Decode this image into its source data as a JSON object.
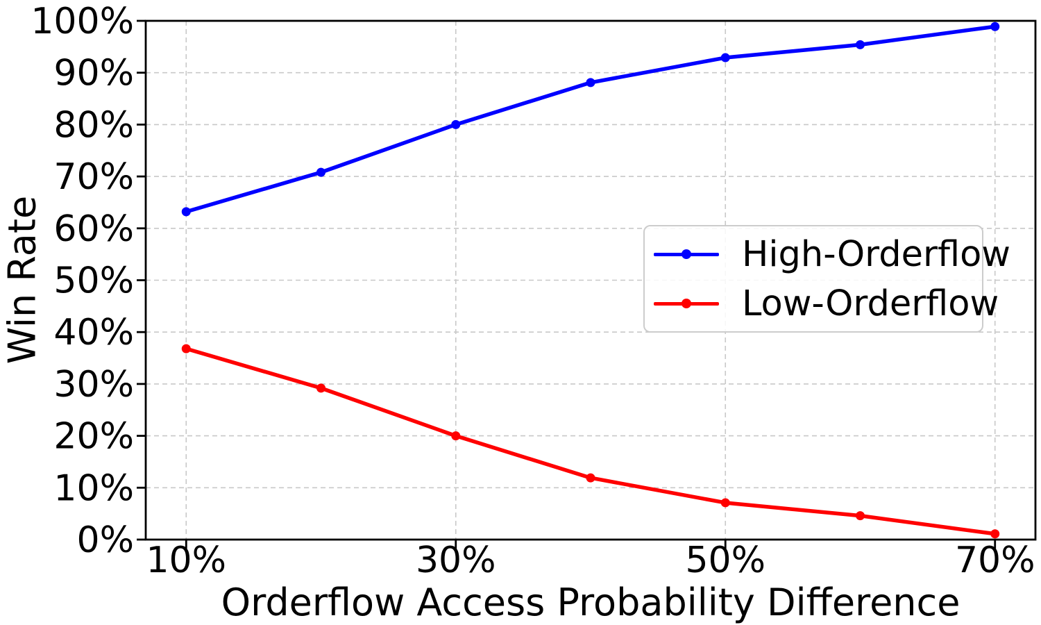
{
  "chart_data": {
    "type": "line",
    "title": "",
    "xlabel": "Orderflow Access Probability Difference",
    "ylabel": "Win Rate",
    "x": [
      10,
      20,
      30,
      40,
      50,
      60,
      70
    ],
    "series": [
      {
        "name": "High-Orderflow",
        "color": "#0000ff",
        "values": [
          63.2,
          70.8,
          80.0,
          88.1,
          92.9,
          95.4,
          98.9
        ]
      },
      {
        "name": "Low-Orderflow",
        "color": "#ff0000",
        "values": [
          36.8,
          29.2,
          20.0,
          11.9,
          7.1,
          4.6,
          1.1
        ]
      }
    ],
    "xlim": [
      7,
      73
    ],
    "ylim": [
      0,
      100
    ],
    "x_ticks": [
      {
        "value": 10,
        "label": "10%"
      },
      {
        "value": 30,
        "label": "30%"
      },
      {
        "value": 50,
        "label": "50%"
      },
      {
        "value": 70,
        "label": "70%"
      }
    ],
    "y_ticks": [
      {
        "value": 0,
        "label": "0%"
      },
      {
        "value": 10,
        "label": "10%"
      },
      {
        "value": 20,
        "label": "20%"
      },
      {
        "value": 30,
        "label": "30%"
      },
      {
        "value": 40,
        "label": "40%"
      },
      {
        "value": 50,
        "label": "50%"
      },
      {
        "value": 60,
        "label": "60%"
      },
      {
        "value": 70,
        "label": "70%"
      },
      {
        "value": 80,
        "label": "80%"
      },
      {
        "value": 90,
        "label": "90%"
      },
      {
        "value": 100,
        "label": "100%"
      }
    ],
    "grid": {
      "on": true,
      "style": "dashed",
      "color": "#c8c8c8"
    },
    "legend": {
      "position": "center-right"
    },
    "colors": {
      "axis": "#000000",
      "text": "#000000"
    }
  }
}
